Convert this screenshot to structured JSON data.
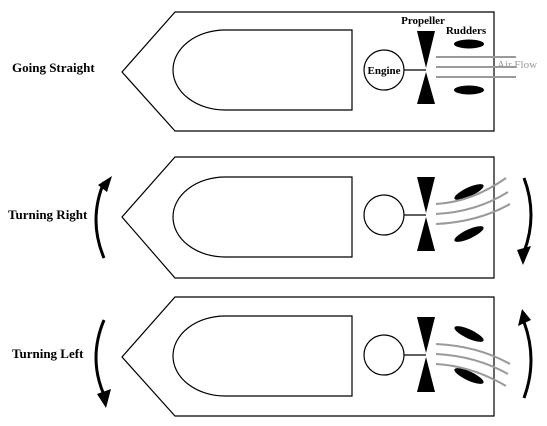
{
  "rows": [
    {
      "label": "Going Straight",
      "state": "straight"
    },
    {
      "label": "Turning Right",
      "state": "right"
    },
    {
      "label": "Turning Left",
      "state": "left"
    }
  ],
  "labels": {
    "propeller": "Propeller",
    "rudders": "Rudders",
    "engine": "Engine",
    "air_flow": "Air Flow"
  }
}
